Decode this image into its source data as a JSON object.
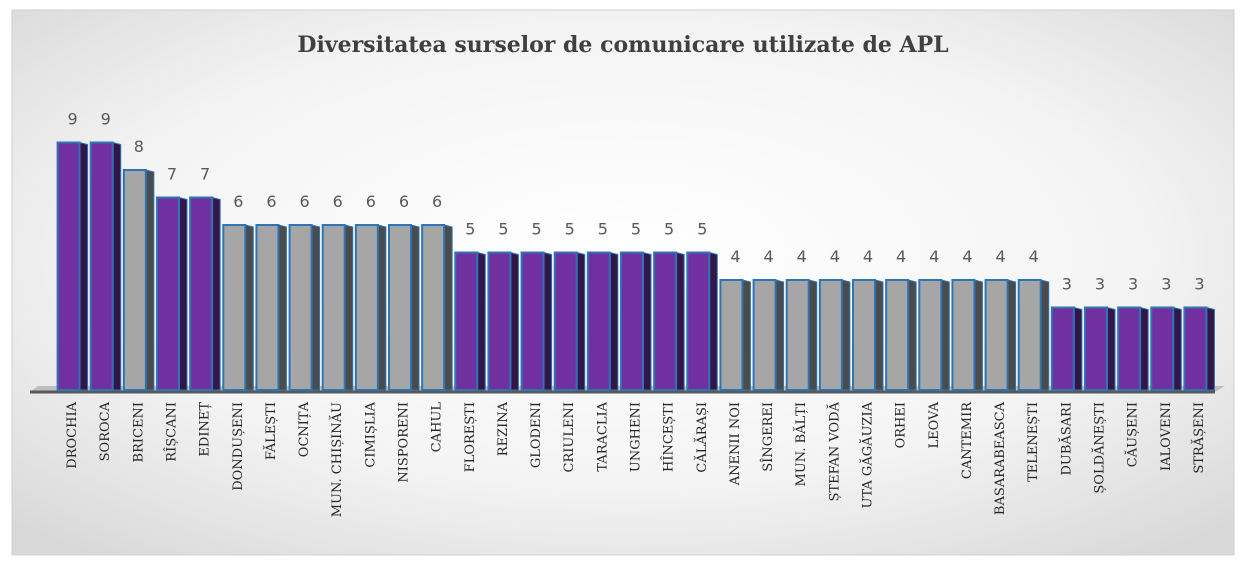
{
  "chart_data": {
    "type": "bar",
    "title": "Diversitatea surselor de comunicare utilizate de APL",
    "categories": [
      "DROCHIA",
      "SOROCA",
      "BRICENI",
      "RÎȘCANI",
      "EDINEȚ",
      "DONDUȘENI",
      "FĂLEȘTI",
      "OCNIȚA",
      "MUN. CHIȘINĂU",
      "CIMIȘLIA",
      "NISPORENI",
      "CAHUL",
      "FLOREȘTI",
      "REZINA",
      "GLODENI",
      "CRIULENI",
      "TARACLIA",
      "UNGHENI",
      "HÎNCEȘTI",
      "CĂLĂRAȘI",
      "ANENII NOI",
      "SÎNGEREI",
      "MUN. BĂLȚI",
      "ȘTEFAN VODĂ",
      "UTA GĂGĂUZIA",
      "ORHEI",
      "LEOVA",
      "CANTEMIR",
      "BASARABEASCA",
      "TELENEȘTI",
      "DUBĂSARI",
      "ȘOLDĂNEȘTI",
      "CĂUȘENI",
      "IALOVENI",
      "STRĂȘENI"
    ],
    "values": [
      9,
      9,
      8,
      7,
      7,
      6,
      6,
      6,
      6,
      6,
      6,
      6,
      5,
      5,
      5,
      5,
      5,
      5,
      5,
      5,
      4,
      4,
      4,
      4,
      4,
      4,
      4,
      4,
      4,
      4,
      3,
      3,
      3,
      3,
      3
    ],
    "colors": [
      "#7030a0",
      "#7030a0",
      "#a6a6a6",
      "#7030a0",
      "#7030a0",
      "#a6a6a6",
      "#a6a6a6",
      "#a6a6a6",
      "#a6a6a6",
      "#a6a6a6",
      "#a6a6a6",
      "#a6a6a6",
      "#7030a0",
      "#7030a0",
      "#7030a0",
      "#7030a0",
      "#7030a0",
      "#7030a0",
      "#7030a0",
      "#7030a0",
      "#a6a6a6",
      "#a6a6a6",
      "#a6a6a6",
      "#a6a6a6",
      "#a6a6a6",
      "#a6a6a6",
      "#a6a6a6",
      "#a6a6a6",
      "#a6a6a6",
      "#a6a6a6",
      "#7030a0",
      "#7030a0",
      "#7030a0",
      "#7030a0",
      "#7030a0"
    ],
    "ylim": [
      0,
      10
    ]
  }
}
